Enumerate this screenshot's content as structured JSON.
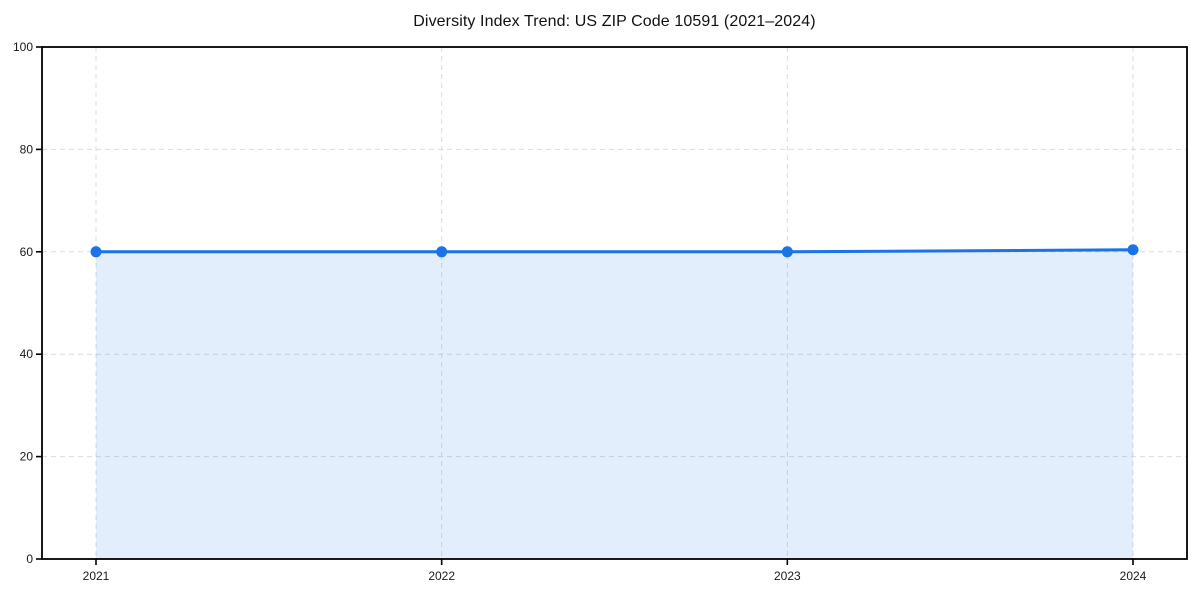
{
  "figure": {
    "title": "Diversity Index Trend: US ZIP Code 10591 (2021–2024)"
  },
  "chart_data": {
    "type": "line",
    "title": "Diversity Index Trend: US ZIP Code 10591 (2021–2024)",
    "categories": [
      "2021",
      "2022",
      "2023",
      "2024"
    ],
    "values": [
      60,
      60,
      60,
      60.4
    ],
    "xlabel": "",
    "ylabel": "",
    "ylim": [
      0,
      100
    ],
    "yticks": [
      0,
      20,
      40,
      60,
      80,
      100
    ],
    "grid": true,
    "grid_style": "dashed",
    "legend": "none",
    "marker": "circle",
    "area_fill": true,
    "colors": {
      "line": "#1a73e8",
      "marker": "#1a73e8",
      "area": "rgba(26,115,232,0.12)",
      "grid": "#d9dce1",
      "axis": "#000000",
      "tick_text": "#1a1a1a",
      "title_text": "#111111",
      "background": "#ffffff"
    }
  }
}
